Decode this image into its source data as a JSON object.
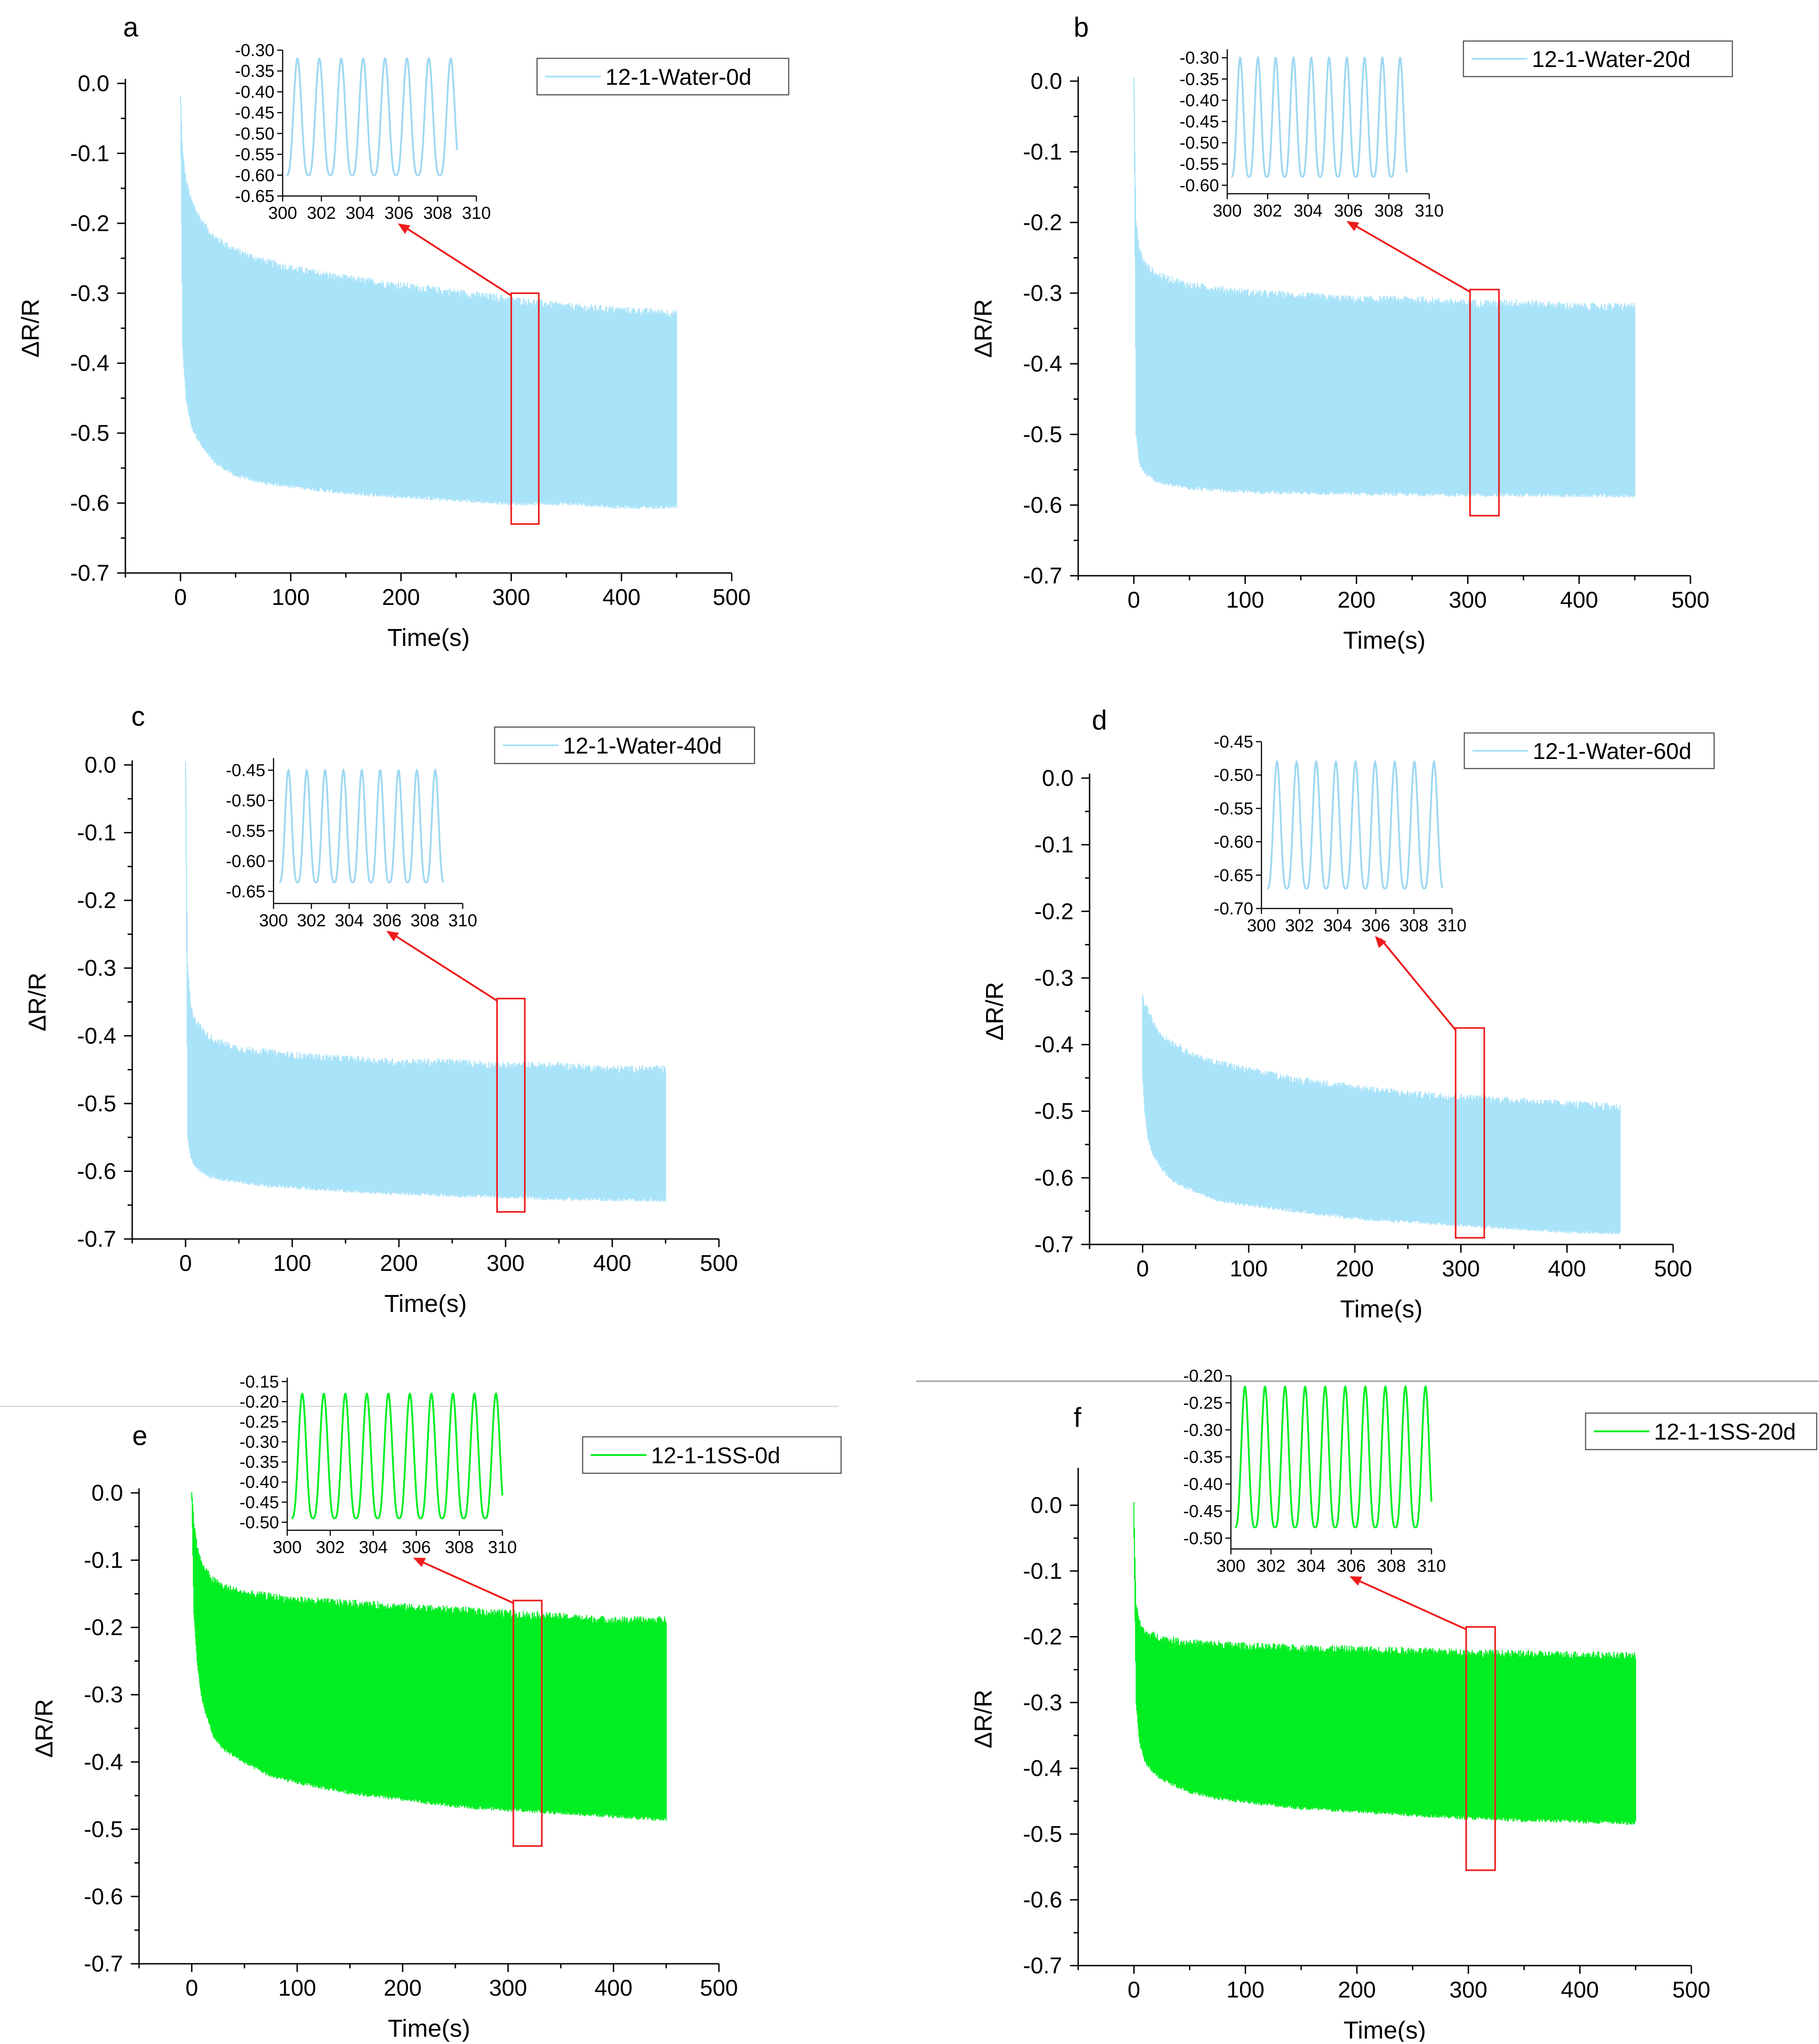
{
  "figure": {
    "background": "#ffffff",
    "colors": {
      "water": "#a9e3f9",
      "ss": "#00ee22",
      "inset_water": "#9fd8f3",
      "zoom_box": "#ee1c1c"
    }
  },
  "chart_data": [
    {
      "type": "line",
      "panel_label": "a",
      "legend": "12-1-Water-0d",
      "color": "#a9e3f9",
      "xlabel": "Time(s)",
      "ylabel": "ΔR/R",
      "xlim": [
        -50,
        500
      ],
      "ylim": [
        -0.7,
        0.0
      ],
      "xticks": [
        "0",
        "100",
        "200",
        "300",
        "400",
        "500"
      ],
      "yticks": [
        "0.0",
        "-0.1",
        "-0.2",
        "-0.3",
        "-0.4",
        "-0.5",
        "-0.6",
        "-0.7"
      ],
      "series": [
        {
          "x": [
            0,
            2,
            5,
            10,
            20,
            30,
            50,
            75,
            100,
            150,
            200,
            250,
            300,
            350,
            400,
            450
          ],
          "upper": [
            -0.02,
            -0.1,
            -0.14,
            -0.17,
            -0.2,
            -0.22,
            -0.24,
            -0.255,
            -0.265,
            -0.28,
            -0.29,
            -0.3,
            -0.31,
            -0.32,
            -0.325,
            -0.33
          ],
          "lower": [
            -0.02,
            -0.38,
            -0.45,
            -0.49,
            -0.52,
            -0.54,
            -0.56,
            -0.57,
            -0.575,
            -0.585,
            -0.59,
            -0.595,
            -0.6,
            -0.6,
            -0.605,
            -0.605
          ]
        }
      ],
      "zoom_box": {
        "x": [
          300,
          325
        ],
        "y": [
          -0.63,
          -0.3
        ]
      },
      "inset": {
        "xlim": [
          300,
          310
        ],
        "ylim": [
          -0.65,
          -0.3
        ],
        "xticks": [
          "300",
          "302",
          "304",
          "306",
          "308",
          "310"
        ],
        "yticks": [
          "-0.30",
          "-0.35",
          "-0.40",
          "-0.45",
          "-0.50",
          "-0.55",
          "-0.60",
          "-0.65"
        ],
        "wave": {
          "x_start": 300.2,
          "x_end": 309.0,
          "period": 1.13,
          "min": -0.6,
          "max": -0.32
        }
      }
    },
    {
      "type": "line",
      "panel_label": "b",
      "legend": "12-1-Water-20d",
      "color": "#a9e3f9",
      "xlabel": "Time(s)",
      "ylabel": "ΔR/R",
      "xlim": [
        -50,
        500
      ],
      "ylim": [
        -0.7,
        0.0
      ],
      "xticks": [
        "0",
        "100",
        "200",
        "300",
        "400",
        "500"
      ],
      "yticks": [
        "0.0",
        "-0.1",
        "-0.2",
        "-0.3",
        "-0.4",
        "-0.5",
        "-0.6",
        "-0.7"
      ],
      "series": [
        {
          "x": [
            0,
            2,
            5,
            10,
            20,
            30,
            50,
            75,
            100,
            150,
            200,
            250,
            300,
            350,
            400,
            450
          ],
          "upper": [
            0.0,
            -0.2,
            -0.24,
            -0.26,
            -0.275,
            -0.28,
            -0.29,
            -0.295,
            -0.3,
            -0.305,
            -0.31,
            -0.31,
            -0.315,
            -0.315,
            -0.32,
            -0.32
          ],
          "lower": [
            0.0,
            -0.5,
            -0.54,
            -0.555,
            -0.565,
            -0.57,
            -0.575,
            -0.578,
            -0.58,
            -0.582,
            -0.583,
            -0.584,
            -0.585,
            -0.585,
            -0.586,
            -0.586
          ]
        }
      ],
      "zoom_box": {
        "x": [
          302,
          328
        ],
        "y": [
          -0.615,
          -0.295
        ]
      },
      "inset": {
        "xlim": [
          300,
          310
        ],
        "ylim": [
          -0.62,
          -0.28
        ],
        "xticks": [
          "300",
          "302",
          "304",
          "306",
          "308",
          "310"
        ],
        "yticks": [
          "-0.30",
          "-0.35",
          "-0.40",
          "-0.45",
          "-0.50",
          "-0.55",
          "-0.60"
        ],
        "wave": {
          "x_start": 300.2,
          "x_end": 308.9,
          "period": 0.88,
          "min": -0.58,
          "max": -0.3
        }
      }
    },
    {
      "type": "line",
      "panel_label": "c",
      "legend": "12-1-Water-40d",
      "color": "#a9e3f9",
      "xlabel": "Time(s)",
      "ylabel": "ΔR/R",
      "xlim": [
        -50,
        500
      ],
      "ylim": [
        -0.7,
        0.0
      ],
      "xticks": [
        "0",
        "100",
        "200",
        "300",
        "400",
        "500"
      ],
      "yticks": [
        "0.0",
        "-0.1",
        "-0.2",
        "-0.3",
        "-0.4",
        "-0.5",
        "-0.6",
        "-0.7"
      ],
      "series": [
        {
          "x": [
            0,
            2,
            5,
            10,
            20,
            30,
            50,
            75,
            100,
            150,
            200,
            250,
            300,
            350,
            400,
            450
          ],
          "upper": [
            0.0,
            -0.3,
            -0.36,
            -0.38,
            -0.4,
            -0.41,
            -0.42,
            -0.425,
            -0.43,
            -0.435,
            -0.44,
            -0.44,
            -0.445,
            -0.445,
            -0.45,
            -0.45
          ],
          "lower": [
            0.0,
            -0.55,
            -0.58,
            -0.595,
            -0.605,
            -0.61,
            -0.615,
            -0.62,
            -0.623,
            -0.628,
            -0.632,
            -0.635,
            -0.637,
            -0.64,
            -0.641,
            -0.642
          ]
        }
      ],
      "zoom_box": {
        "x": [
          292,
          318
        ],
        "y": [
          -0.66,
          -0.345
        ]
      },
      "inset": {
        "xlim": [
          300,
          310
        ],
        "ylim": [
          -0.67,
          -0.43
        ],
        "xticks": [
          "300",
          "302",
          "304",
          "306",
          "308",
          "310"
        ],
        "yticks": [
          "-0.45",
          "-0.50",
          "-0.55",
          "-0.60",
          "-0.65"
        ],
        "wave": {
          "x_start": 300.3,
          "x_end": 309.0,
          "period": 0.97,
          "min": -0.635,
          "max": -0.45
        }
      }
    },
    {
      "type": "line",
      "panel_label": "d",
      "legend": "12-1-Water-60d",
      "color": "#a9e3f9",
      "xlabel": "Time(s)",
      "ylabel": "ΔR/R",
      "xlim": [
        -50,
        500
      ],
      "ylim": [
        -0.7,
        0.0
      ],
      "xticks": [
        "0",
        "100",
        "200",
        "300",
        "400",
        "500"
      ],
      "yticks": [
        "0.0",
        "-0.1",
        "-0.2",
        "-0.3",
        "-0.4",
        "-0.5",
        "-0.6",
        "-0.7"
      ],
      "series": [
        {
          "x": [
            0,
            2,
            5,
            10,
            20,
            30,
            50,
            75,
            100,
            150,
            200,
            250,
            300,
            350,
            400,
            450
          ],
          "upper": [
            -0.33,
            -0.34,
            -0.35,
            -0.37,
            -0.39,
            -0.4,
            -0.42,
            -0.43,
            -0.44,
            -0.455,
            -0.465,
            -0.475,
            -0.48,
            -0.485,
            -0.49,
            -0.495
          ],
          "lower": [
            -0.45,
            -0.5,
            -0.54,
            -0.565,
            -0.59,
            -0.605,
            -0.62,
            -0.635,
            -0.64,
            -0.65,
            -0.66,
            -0.665,
            -0.67,
            -0.675,
            -0.68,
            -0.682
          ]
        }
      ],
      "zoom_box": {
        "x": [
          295,
          322
        ],
        "y": [
          -0.69,
          -0.375
        ]
      },
      "inset": {
        "xlim": [
          300,
          310
        ],
        "ylim": [
          -0.7,
          -0.45
        ],
        "xticks": [
          "300",
          "302",
          "304",
          "306",
          "308",
          "310"
        ],
        "yticks": [
          "-0.45",
          "-0.50",
          "-0.55",
          "-0.60",
          "-0.65",
          "-0.70"
        ],
        "wave": {
          "x_start": 300.3,
          "x_end": 309.5,
          "period": 1.03,
          "min": -0.67,
          "max": -0.48
        }
      }
    },
    {
      "type": "line",
      "panel_label": "e",
      "legend": "12-1-1SS-0d",
      "color": "#00ee22",
      "xlabel": "Time(s)",
      "ylabel": "ΔR/R",
      "xlim": [
        -50,
        500
      ],
      "ylim": [
        -0.7,
        0.0
      ],
      "xticks": [
        "0",
        "100",
        "200",
        "300",
        "400",
        "500"
      ],
      "yticks": [
        "0.0",
        "-0.1",
        "-0.2",
        "-0.3",
        "-0.4",
        "-0.5",
        "-0.6",
        "-0.7"
      ],
      "series": [
        {
          "x": [
            0,
            2,
            5,
            10,
            20,
            30,
            50,
            75,
            100,
            150,
            200,
            250,
            300,
            350,
            400,
            450
          ],
          "upper": [
            0.0,
            -0.04,
            -0.08,
            -0.11,
            -0.13,
            -0.14,
            -0.15,
            -0.155,
            -0.16,
            -0.165,
            -0.17,
            -0.175,
            -0.18,
            -0.185,
            -0.19,
            -0.19
          ],
          "lower": [
            -0.01,
            -0.18,
            -0.25,
            -0.31,
            -0.36,
            -0.38,
            -0.4,
            -0.42,
            -0.43,
            -0.445,
            -0.455,
            -0.465,
            -0.47,
            -0.475,
            -0.48,
            -0.485
          ]
        }
      ],
      "zoom_box": {
        "x": [
          305,
          332
        ],
        "y": [
          -0.525,
          -0.16
        ]
      },
      "inset": {
        "xlim": [
          300,
          310
        ],
        "ylim": [
          -0.52,
          -0.14
        ],
        "xticks": [
          "300",
          "302",
          "304",
          "306",
          "308",
          "310"
        ],
        "yticks": [
          "-0.15",
          "-0.20",
          "-0.25",
          "-0.30",
          "-0.35",
          "-0.40",
          "-0.45",
          "-0.50"
        ],
        "wave": {
          "x_start": 300.2,
          "x_end": 310.0,
          "period": 1.0,
          "min": -0.49,
          "max": -0.18
        }
      }
    },
    {
      "type": "line",
      "panel_label": "f",
      "legend": "12-1-1SS-20d",
      "color": "#00ee22",
      "xlabel": "Time(s)",
      "ylabel": "ΔR/R",
      "xlim": [
        -50,
        500
      ],
      "ylim": [
        -0.7,
        0.05
      ],
      "xticks": [
        "0",
        "100",
        "200",
        "300",
        "400",
        "500"
      ],
      "yticks": [
        "0.0",
        "-0.1",
        "-0.2",
        "-0.3",
        "-0.4",
        "-0.5",
        "-0.6",
        "-0.7"
      ],
      "series": [
        {
          "x": [
            0,
            2,
            5,
            10,
            20,
            30,
            50,
            75,
            100,
            150,
            200,
            250,
            300,
            350,
            400,
            450
          ],
          "upper": [
            0.0,
            -0.15,
            -0.18,
            -0.195,
            -0.2,
            -0.205,
            -0.21,
            -0.212,
            -0.215,
            -0.218,
            -0.22,
            -0.222,
            -0.225,
            -0.227,
            -0.228,
            -0.23
          ],
          "lower": [
            -0.05,
            -0.3,
            -0.36,
            -0.39,
            -0.41,
            -0.42,
            -0.435,
            -0.445,
            -0.45,
            -0.46,
            -0.465,
            -0.47,
            -0.475,
            -0.478,
            -0.48,
            -0.483
          ]
        }
      ],
      "zoom_box": {
        "x": [
          298,
          324
        ],
        "y": [
          -0.555,
          -0.185
        ]
      },
      "inset": {
        "xlim": [
          300,
          310
        ],
        "ylim": [
          -0.52,
          -0.2
        ],
        "xticks": [
          "300",
          "302",
          "304",
          "306",
          "308",
          "310"
        ],
        "yticks": [
          "-0.20",
          "-0.25",
          "-0.30",
          "-0.35",
          "-0.40",
          "-0.45",
          "-0.50"
        ],
        "wave": {
          "x_start": 300.2,
          "x_end": 310.0,
          "period": 1.0,
          "min": -0.48,
          "max": -0.22
        }
      }
    }
  ]
}
